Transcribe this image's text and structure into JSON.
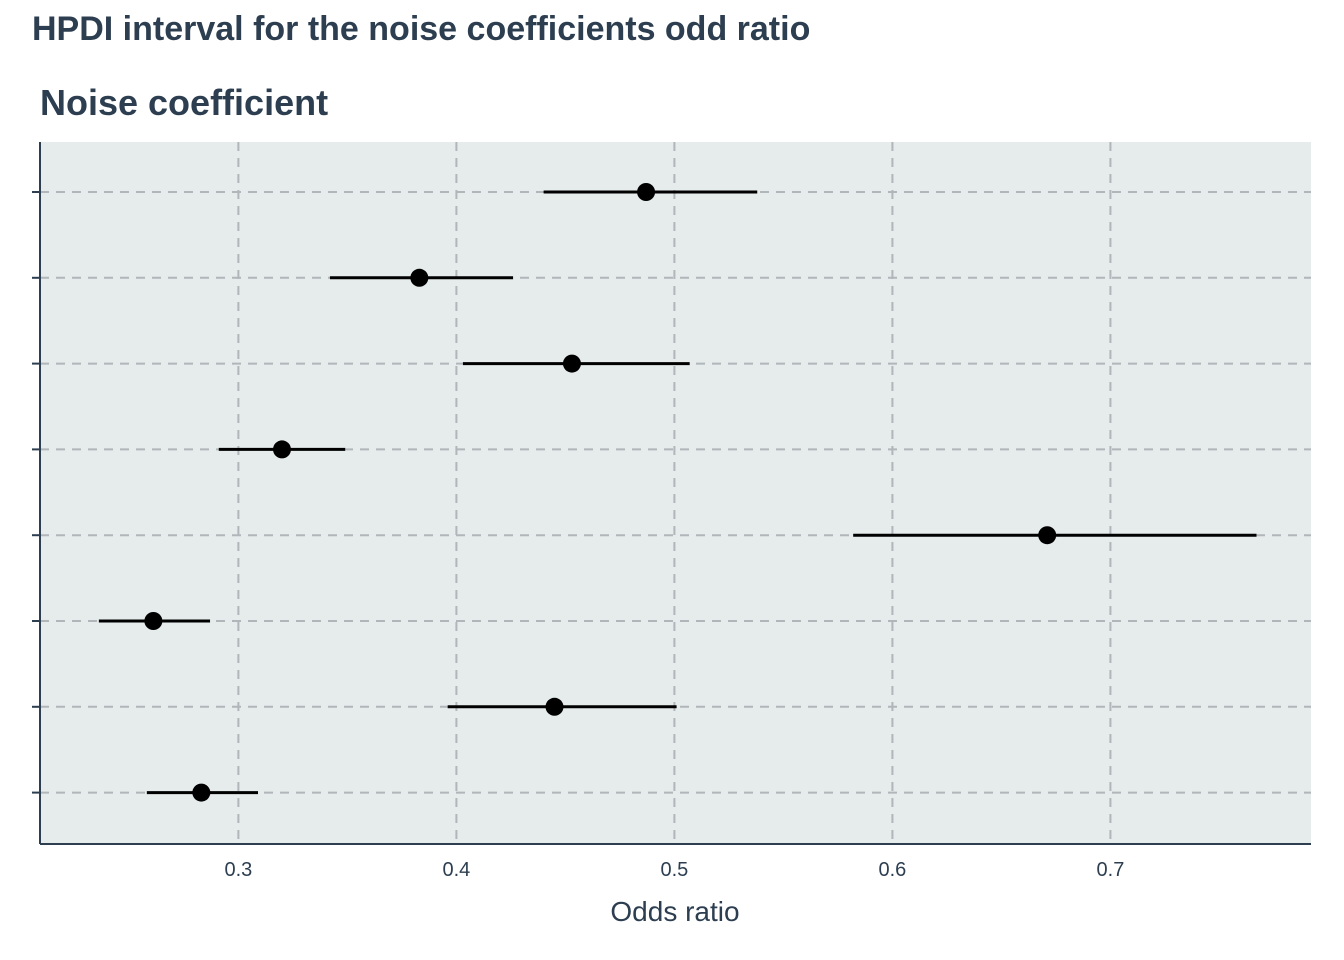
{
  "chart_data": {
    "type": "interval",
    "title": "HPDI interval for the noise coefficients odd ratio",
    "subtitle": "Noise coefficient",
    "xlabel": "Odds ratio",
    "ylabel": "",
    "xlim": [
      0.209,
      0.792
    ],
    "xticks": [
      0.3,
      0.4,
      0.5,
      0.6,
      0.7
    ],
    "xtick_labels": [
      "0.3",
      "0.4",
      "0.5",
      "0.6",
      "0.7"
    ],
    "grid": true,
    "point_color": "#000000",
    "panel_background": "#e6ecec",
    "rows": [
      {
        "estimate": 0.487,
        "lower": 0.44,
        "upper": 0.538
      },
      {
        "estimate": 0.383,
        "lower": 0.342,
        "upper": 0.426
      },
      {
        "estimate": 0.453,
        "lower": 0.403,
        "upper": 0.507
      },
      {
        "estimate": 0.32,
        "lower": 0.291,
        "upper": 0.349
      },
      {
        "estimate": 0.671,
        "lower": 0.582,
        "upper": 0.767
      },
      {
        "estimate": 0.261,
        "lower": 0.236,
        "upper": 0.287
      },
      {
        "estimate": 0.445,
        "lower": 0.396,
        "upper": 0.501
      },
      {
        "estimate": 0.283,
        "lower": 0.258,
        "upper": 0.309
      }
    ]
  }
}
